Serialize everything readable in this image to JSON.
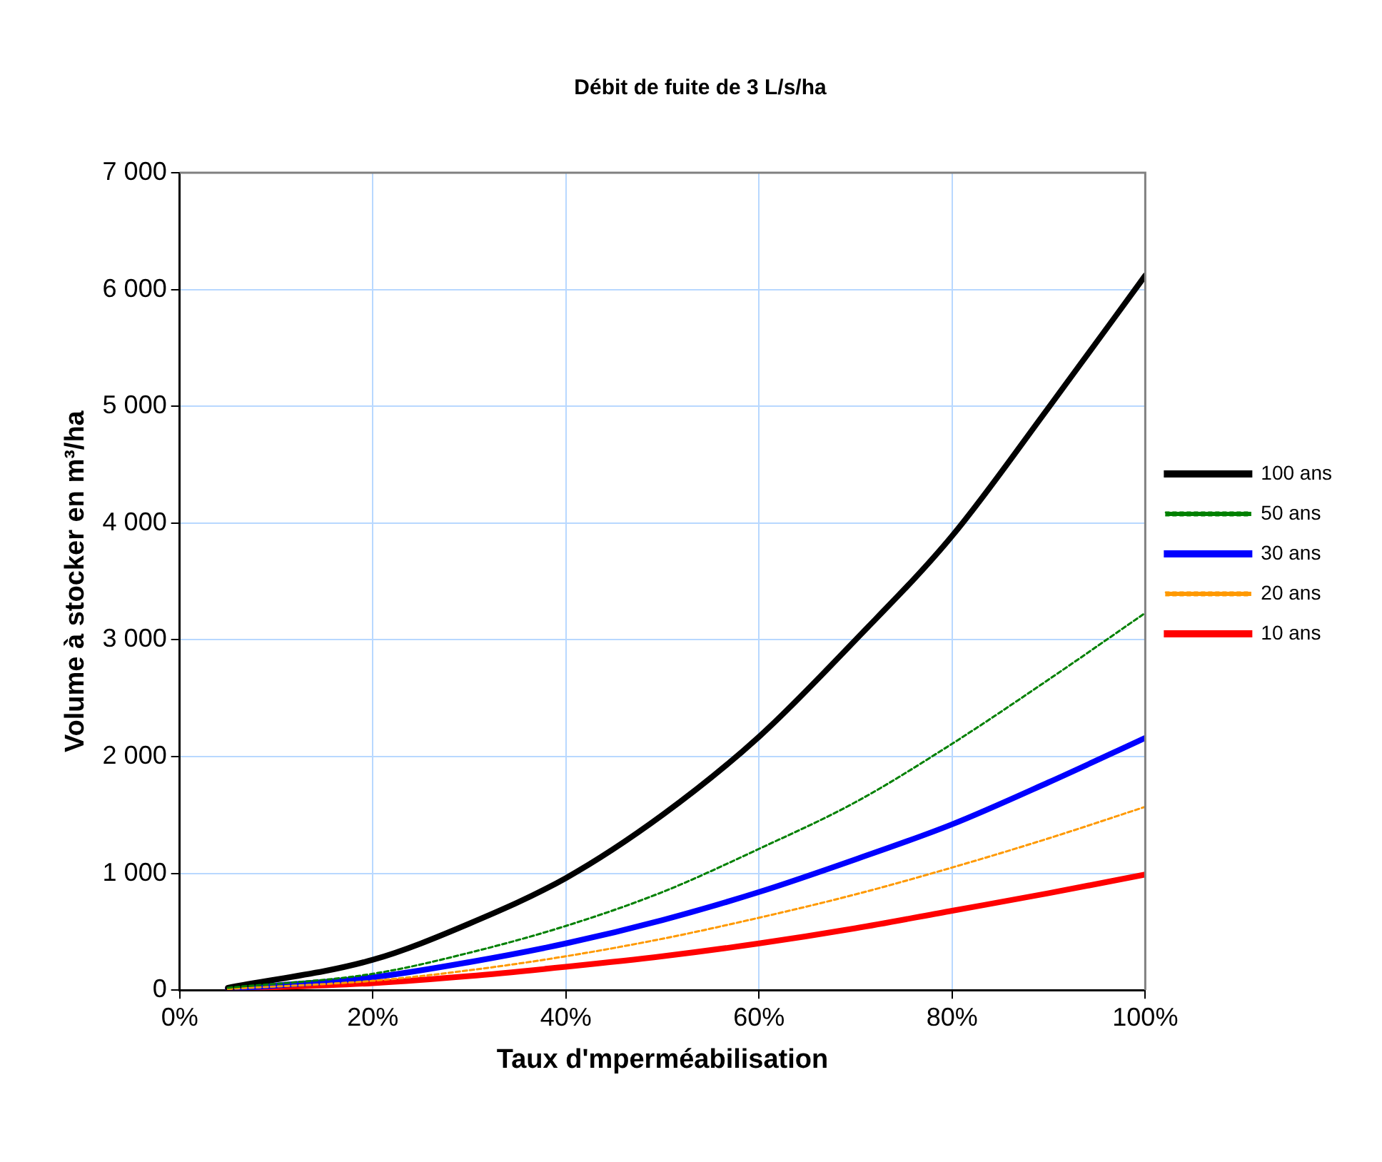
{
  "chart_data": {
    "type": "line",
    "title": "Débit de fuite de 3 L/s/ha",
    "xlabel": "Taux d'mperméabilisation",
    "ylabel": "Volume à stocker en m³/ha",
    "x": [
      5,
      20,
      30,
      40,
      50,
      60,
      70,
      80,
      90,
      100
    ],
    "xlim": [
      0,
      100
    ],
    "xticks": [
      {
        "value": 0,
        "label": "0%"
      },
      {
        "value": 20,
        "label": "20%"
      },
      {
        "value": 40,
        "label": "40%"
      },
      {
        "value": 60,
        "label": "60%"
      },
      {
        "value": 80,
        "label": "80%"
      },
      {
        "value": 100,
        "label": "100%"
      }
    ],
    "ylim": [
      0,
      7000
    ],
    "yticks": [
      0,
      {
        "value": 1000,
        "label": "1 000"
      },
      {
        "value": 2000,
        "label": "2 000"
      },
      {
        "value": 3000,
        "label": "3 000"
      },
      {
        "value": 4000,
        "label": "4 000"
      },
      {
        "value": 5000,
        "label": "5 000"
      },
      {
        "value": 6000,
        "label": "6 000"
      },
      {
        "value": 7000,
        "label": "7 000"
      }
    ],
    "grid": true,
    "legend": "right",
    "marker": "none",
    "series": [
      {
        "name": "100 ans",
        "color": "#000000",
        "line_style": "solid",
        "values": [
          20,
          260,
          570,
          960,
          1500,
          2170,
          3000,
          3890,
          4990,
          6120
        ]
      },
      {
        "name": "50 ans",
        "color": "#008000",
        "line_style": "dashed",
        "values": [
          20,
          140,
          320,
          550,
          840,
          1210,
          1610,
          2110,
          2660,
          3230
        ]
      },
      {
        "name": "30 ans",
        "color": "#0000ff",
        "line_style": "solid",
        "values": [
          10,
          110,
          240,
          400,
          600,
          840,
          1120,
          1420,
          1780,
          2160
        ]
      },
      {
        "name": "20 ans",
        "color": "#ff9900",
        "line_style": "dashed",
        "values": [
          10,
          80,
          170,
          290,
          440,
          620,
          820,
          1050,
          1300,
          1570
        ]
      },
      {
        "name": "10 ans",
        "color": "#ff0000",
        "line_style": "solid",
        "values": [
          10,
          60,
          120,
          200,
          290,
          400,
          530,
          680,
          830,
          990
        ]
      }
    ]
  }
}
